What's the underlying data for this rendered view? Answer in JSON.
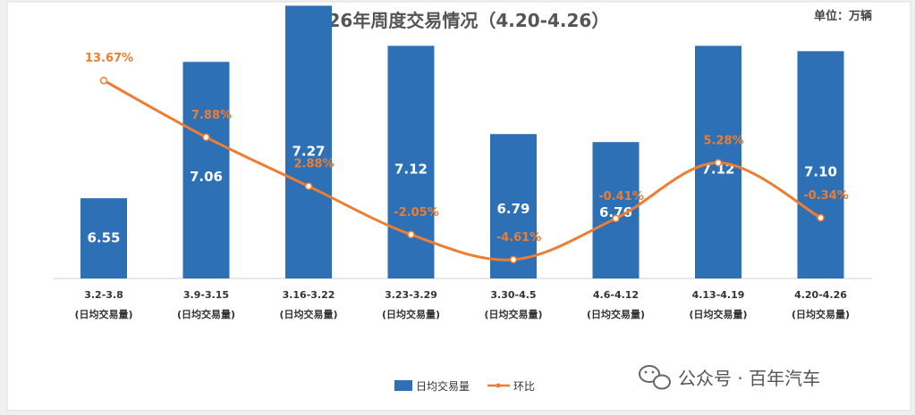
{
  "chart_data": {
    "type": "bar",
    "title": "2026年周度交易情况（4.20-4.26）",
    "unit_label": "单位：万辆",
    "categories": [
      "3.2-3.8",
      "3.9-3.15",
      "3.16-3.22",
      "3.23-3.29",
      "3.30-4.5",
      "4.6-4.12",
      "4.13-4.19",
      "4.20-4.26"
    ],
    "category_sublabel": "(日均交易量)",
    "series": [
      {
        "name": "日均交易量",
        "type": "bar",
        "color": "#2e70b6",
        "values": [
          6.55,
          7.06,
          7.27,
          7.12,
          6.79,
          6.76,
          7.12,
          7.1
        ],
        "labels": [
          "6.55",
          "7.06",
          "7.27",
          "7.12",
          "6.79",
          "6.76",
          "7.12",
          "7.10"
        ]
      },
      {
        "name": "环比",
        "type": "line",
        "color": "#ee7d31",
        "values": [
          13.67,
          7.88,
          2.88,
          -2.05,
          -4.61,
          -0.41,
          5.28,
          -0.34
        ],
        "labels": [
          "13.67%",
          "7.88%",
          "2.88%",
          "-2.05%",
          "-4.61%",
          "-0.41%",
          "5.28%",
          "-0.34%"
        ]
      }
    ],
    "legend_position": "bottom-center",
    "grid": false
  },
  "watermark": {
    "text": "公众号 · 百年汽车",
    "icon": "wechat-icon"
  }
}
